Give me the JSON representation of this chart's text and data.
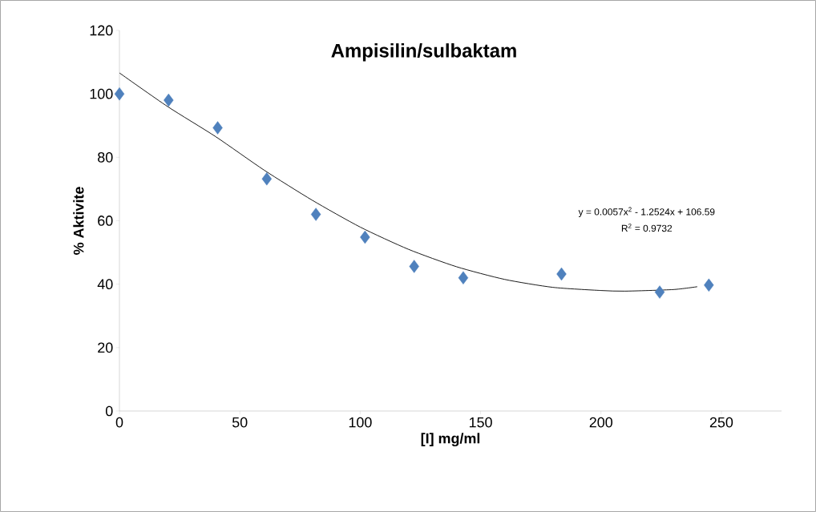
{
  "chart_data": {
    "type": "scatter",
    "title": "Ampisilin/sulbaktam",
    "xlabel": "[I] mg/ml",
    "ylabel": "% Aktivite",
    "series": [
      {
        "color": "#4f81bd",
        "marker": "diamond",
        "x": [
          0,
          20.4,
          40.8,
          61.2,
          81.6,
          102,
          122.4,
          142.8,
          183.6,
          224.4,
          244.8
        ],
        "values": [
          100,
          98,
          89.3,
          73.2,
          62,
          54.8,
          45.6,
          42,
          43.2,
          37.5,
          39.7
        ]
      },
      {
        "type": "line",
        "color": "#000000",
        "marker": "none",
        "x": [
          0,
          20,
          40,
          60,
          80,
          100,
          120,
          140,
          160,
          180,
          200,
          210,
          230,
          240
        ],
        "values": [
          106.6,
          96,
          86.5,
          76,
          66.5,
          58,
          51,
          45.5,
          41.5,
          39,
          38,
          37.8,
          38.3,
          39.2
        ]
      }
    ],
    "annotations": [
      "y = 0.0057x$^{2}$ - 1.2524x + 106.59",
      "R$^{2}$ = 0.9732"
    ],
    "xlim": [
      0,
      275
    ],
    "ylim": [
      0,
      120
    ],
    "xticks": [
      0,
      50,
      100,
      150,
      200,
      250
    ],
    "yticks": [
      0,
      20,
      40,
      60,
      80,
      100,
      120
    ],
    "grid": false
  }
}
